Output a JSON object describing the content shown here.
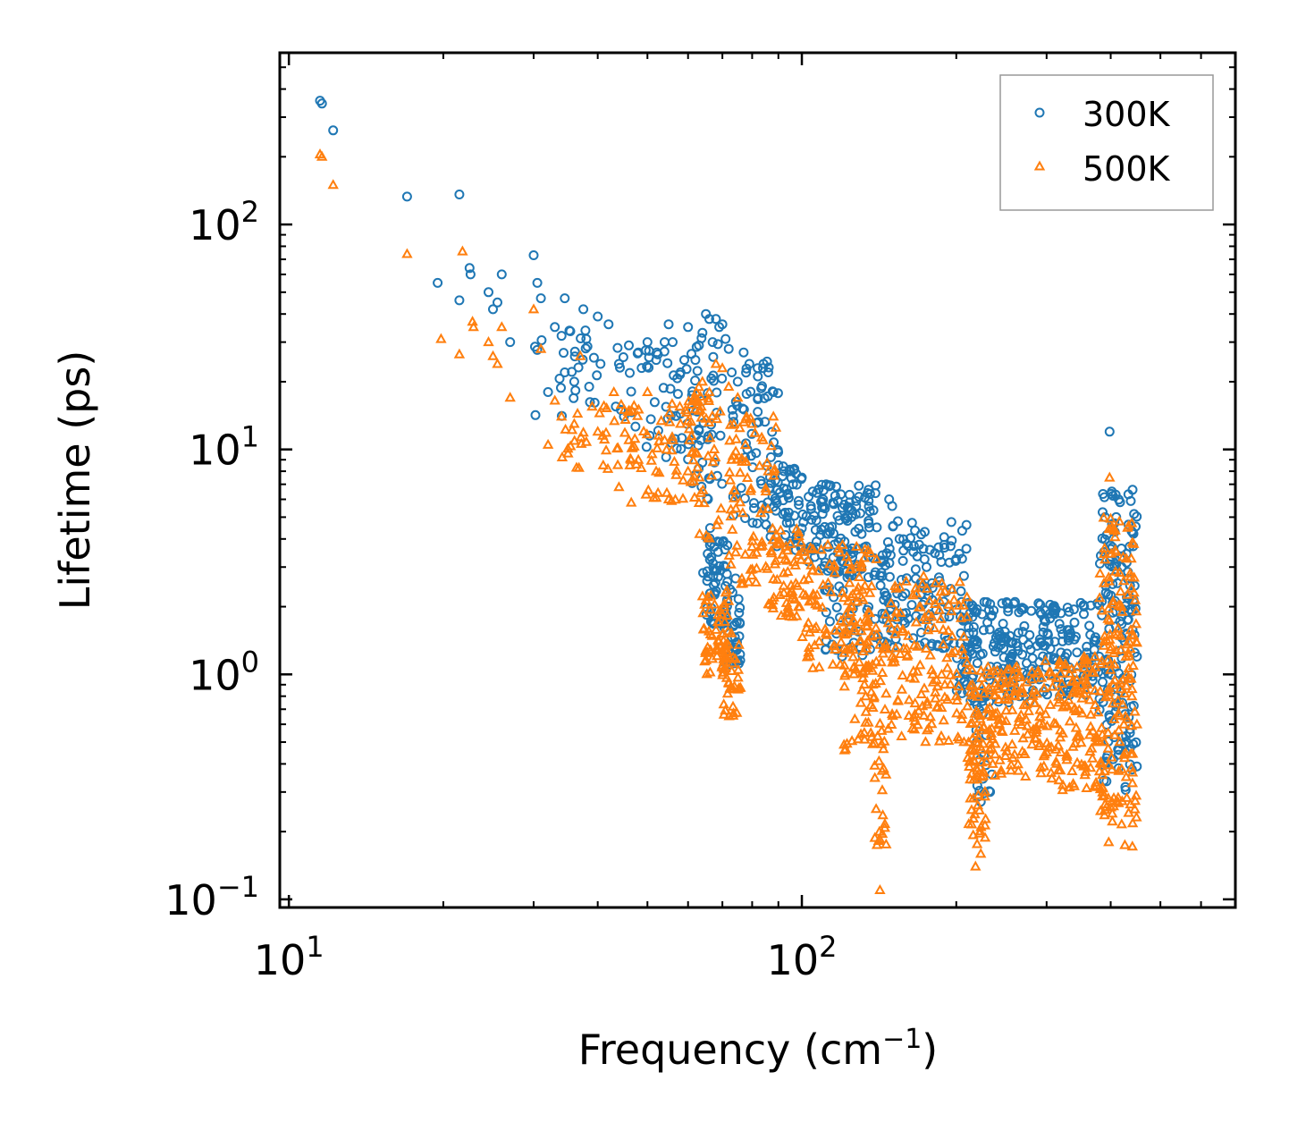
{
  "chart_data": {
    "type": "scatter",
    "x_scale": "log",
    "y_scale": "log",
    "xlabel": "Frequency (cm",
    "xlabel_sup": "−1",
    "xlabel_end": ")",
    "ylabel": "Lifetime (ps)",
    "xlim": [
      9.6,
      700
    ],
    "ylim": [
      0.092,
      580
    ],
    "x_ticks": [
      {
        "value": 10,
        "base": "10",
        "exp": "1"
      },
      {
        "value": 100,
        "base": "10",
        "exp": "2"
      }
    ],
    "y_ticks": [
      {
        "value": 0.1,
        "base": "10",
        "exp": "−1"
      },
      {
        "value": 1,
        "base": "10",
        "exp": "0"
      },
      {
        "value": 10,
        "base": "10",
        "exp": "1"
      },
      {
        "value": 100,
        "base": "10",
        "exp": "2"
      }
    ],
    "legend_position": "top-right",
    "series": [
      {
        "name": "300K",
        "marker": "circle",
        "color": "#1f77b4",
        "anchors": [
          [
            11.5,
            355
          ],
          [
            11.6,
            345
          ],
          [
            12.2,
            262
          ],
          [
            17,
            133
          ],
          [
            21.5,
            136
          ],
          [
            19.5,
            55
          ],
          [
            21.5,
            46
          ],
          [
            22.5,
            64
          ],
          [
            22.6,
            60
          ],
          [
            24.5,
            50
          ],
          [
            25,
            42
          ],
          [
            25.5,
            45
          ],
          [
            26,
            60
          ],
          [
            27,
            30
          ],
          [
            30,
            73
          ],
          [
            30.5,
            55
          ],
          [
            31,
            47
          ],
          [
            32,
            18
          ],
          [
            33,
            35
          ],
          [
            34,
            32
          ],
          [
            34.5,
            47
          ],
          [
            34.5,
            22
          ],
          [
            36,
            20
          ],
          [
            37.5,
            42
          ],
          [
            38,
            31
          ],
          [
            38.5,
            19
          ],
          [
            40,
            39
          ],
          [
            40.5,
            24
          ],
          [
            42,
            36
          ],
          [
            44,
            24
          ],
          [
            45,
            14
          ],
          [
            46,
            29
          ],
          [
            48,
            27
          ],
          [
            50,
            30
          ],
          [
            52,
            25
          ],
          [
            54,
            30
          ],
          [
            55,
            36
          ],
          [
            56,
            30
          ],
          [
            58,
            22
          ],
          [
            59,
            25
          ],
          [
            60,
            35
          ],
          [
            62,
            25
          ],
          [
            63,
            29
          ],
          [
            64,
            33
          ],
          [
            65,
            40
          ],
          [
            66,
            38
          ],
          [
            67,
            30
          ],
          [
            68,
            38
          ],
          [
            69,
            35
          ],
          [
            70,
            36
          ],
          [
            71,
            31
          ],
          [
            72,
            28
          ],
          [
            73,
            22
          ],
          [
            75,
            20
          ],
          [
            77,
            27
          ],
          [
            79,
            24
          ],
          [
            82,
            23
          ],
          [
            84,
            23
          ],
          [
            86,
            22
          ],
          [
            88,
            18
          ],
          [
            90,
            8.5
          ],
          [
            95,
            8
          ],
          [
            100,
            7.5
          ],
          [
            105,
            6.5
          ],
          [
            110,
            6
          ],
          [
            115,
            5.8
          ],
          [
            120,
            5.5
          ],
          [
            125,
            5
          ],
          [
            130,
            5.2
          ],
          [
            135,
            4.7
          ],
          [
            140,
            4.5
          ],
          [
            148,
            6
          ],
          [
            150,
            5.6
          ],
          [
            155,
            4
          ],
          [
            160,
            3.8
          ],
          [
            165,
            3.5
          ],
          [
            175,
            3
          ],
          [
            185,
            2.7
          ],
          [
            195,
            2.4
          ],
          [
            205,
            2.1
          ],
          [
            215,
            1.8
          ],
          [
            230,
            1.7
          ],
          [
            245,
            1.4
          ],
          [
            260,
            1.1
          ],
          [
            275,
            1
          ],
          [
            290,
            0.95
          ],
          [
            305,
            1.3
          ],
          [
            320,
            1.25
          ],
          [
            340,
            1.7
          ],
          [
            355,
            2
          ],
          [
            365,
            1.5
          ],
          [
            380,
            1.2
          ],
          [
            390,
            5
          ],
          [
            398,
            12
          ],
          [
            402,
            6.5
          ],
          [
            410,
            5
          ],
          [
            420,
            3
          ],
          [
            430,
            2.2
          ],
          [
            440,
            1.9
          ],
          [
            445,
            1.5
          ],
          [
            450,
            1.2
          ]
        ],
        "bands": [
          [
            30,
            45,
            14,
            35,
            30
          ],
          [
            45,
            60,
            9,
            30,
            40
          ],
          [
            60,
            70,
            6,
            33,
            45
          ],
          [
            64,
            72,
            1.6,
            4.5,
            60
          ],
          [
            70,
            76,
            1.1,
            2.8,
            35
          ],
          [
            73,
            90,
            4.5,
            25,
            60
          ],
          [
            85,
            100,
            3.5,
            8.5,
            50
          ],
          [
            100,
            140,
            2.8,
            7,
            110
          ],
          [
            110,
            150,
            1.2,
            4,
            70
          ],
          [
            140,
            210,
            1.3,
            4.8,
            120
          ],
          [
            200,
            290,
            0.75,
            2.1,
            150
          ],
          [
            215,
            235,
            0.25,
            1,
            25
          ],
          [
            290,
            380,
            0.8,
            2.1,
            110
          ],
          [
            380,
            450,
            0.3,
            7,
            150
          ]
        ]
      },
      {
        "name": "500K",
        "marker": "triangle",
        "color": "#ff7f0e",
        "anchors": [
          [
            11.5,
            205
          ],
          [
            11.6,
            200
          ],
          [
            12.2,
            150
          ],
          [
            17,
            74
          ],
          [
            19.8,
            31
          ],
          [
            21.5,
            26.5
          ],
          [
            21.8,
            76
          ],
          [
            22.8,
            37
          ],
          [
            22.9,
            35
          ],
          [
            24.5,
            30
          ],
          [
            25,
            26
          ],
          [
            25.5,
            24
          ],
          [
            26,
            35
          ],
          [
            27,
            17
          ],
          [
            30,
            42
          ],
          [
            31,
            28
          ],
          [
            32,
            10.5
          ],
          [
            33,
            16.5
          ],
          [
            34,
            14
          ],
          [
            35,
            9.6
          ],
          [
            36,
            13
          ],
          [
            37,
            26
          ],
          [
            38,
            10.8
          ],
          [
            39,
            15.5
          ],
          [
            40,
            12
          ],
          [
            41,
            8.5
          ],
          [
            43,
            18
          ],
          [
            44,
            6.8
          ],
          [
            46,
            11
          ],
          [
            48,
            9
          ],
          [
            50,
            18
          ],
          [
            52,
            8
          ],
          [
            54,
            11
          ],
          [
            55,
            6
          ],
          [
            58,
            13
          ],
          [
            60,
            8
          ],
          [
            62,
            17
          ],
          [
            64,
            20
          ],
          [
            66,
            18
          ],
          [
            68,
            24
          ],
          [
            70,
            23
          ],
          [
            72,
            19
          ],
          [
            73,
            9
          ],
          [
            75,
            17
          ],
          [
            78,
            14
          ],
          [
            80,
            13
          ],
          [
            84,
            11
          ],
          [
            86,
            8
          ],
          [
            88,
            14
          ],
          [
            90,
            3.8
          ],
          [
            95,
            3.8
          ],
          [
            100,
            3.5
          ],
          [
            105,
            2.9
          ],
          [
            110,
            2.5
          ],
          [
            120,
            2.3
          ],
          [
            125,
            2
          ],
          [
            130,
            1.7
          ],
          [
            140,
            1.5
          ],
          [
            142,
            0.11
          ],
          [
            145,
            1.3
          ],
          [
            150,
            1.2
          ],
          [
            160,
            1.3
          ],
          [
            170,
            1.1
          ],
          [
            180,
            1
          ],
          [
            190,
            0.9
          ],
          [
            200,
            0.8
          ],
          [
            215,
            0.9
          ],
          [
            218,
            0.14
          ],
          [
            230,
            0.7
          ],
          [
            250,
            0.62
          ],
          [
            270,
            0.52
          ],
          [
            290,
            0.48
          ],
          [
            300,
            0.45
          ],
          [
            320,
            0.45
          ],
          [
            340,
            0.7
          ],
          [
            355,
            1.2
          ],
          [
            360,
            0.9
          ],
          [
            375,
            0.5
          ],
          [
            390,
            0.25
          ],
          [
            398,
            7.5
          ],
          [
            402,
            4.5
          ],
          [
            410,
            3.5
          ],
          [
            420,
            2
          ],
          [
            430,
            1
          ],
          [
            440,
            0.8
          ],
          [
            450,
            0.6
          ]
        ],
        "bands": [
          [
            34,
            48,
            8,
            16,
            30
          ],
          [
            45,
            62,
            5.5,
            16,
            50
          ],
          [
            60,
            70,
            4,
            20,
            50
          ],
          [
            64,
            72,
            0.9,
            2.4,
            55
          ],
          [
            70,
            76,
            0.65,
            1.6,
            40
          ],
          [
            72,
            90,
            2.5,
            14,
            70
          ],
          [
            85,
            100,
            1.8,
            4.5,
            60
          ],
          [
            100,
            140,
            1,
            4,
            120
          ],
          [
            120,
            145,
            0.45,
            1.8,
            60
          ],
          [
            138,
            146,
            0.16,
            0.5,
            20
          ],
          [
            145,
            210,
            0.5,
            2.8,
            140
          ],
          [
            210,
            230,
            0.15,
            0.5,
            35
          ],
          [
            210,
            290,
            0.35,
            1.1,
            150
          ],
          [
            290,
            380,
            0.3,
            1.2,
            130
          ],
          [
            380,
            450,
            0.17,
            5,
            170
          ]
        ]
      }
    ]
  }
}
